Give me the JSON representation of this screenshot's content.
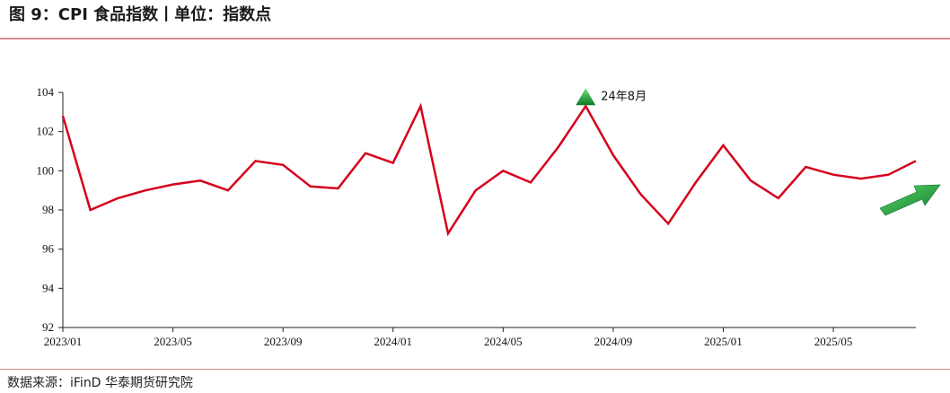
{
  "header": {
    "title": "图 9：CPI 食品指数丨单位：指数点"
  },
  "footer": {
    "source": "数据来源：iFinD  华泰期货研究院"
  },
  "colors": {
    "line": "#d6001c",
    "rule": "#d88a8e",
    "arrow": "#1e9e3a"
  },
  "icons": {
    "peak_marker": "green-up-triangle-icon",
    "trend_arrow": "green-up-right-arrow-icon"
  },
  "chart_data": {
    "type": "line",
    "x": [
      "2023/01",
      "2023/02",
      "2023/03",
      "2023/04",
      "2023/05",
      "2023/06",
      "2023/07",
      "2023/08",
      "2023/09",
      "2023/10",
      "2023/11",
      "2023/12",
      "2024/01",
      "2024/02",
      "2024/03",
      "2024/04",
      "2024/05",
      "2024/06",
      "2024/07",
      "2024/08",
      "2024/09",
      "2024/10",
      "2024/11",
      "2024/12",
      "2025/01",
      "2025/02",
      "2025/03",
      "2025/04",
      "2025/05",
      "2025/06",
      "2025/07",
      "2025/08"
    ],
    "series": [
      {
        "values": [
          102.8,
          98.0,
          98.6,
          99.0,
          99.3,
          99.5,
          99.0,
          100.5,
          100.3,
          99.2,
          99.1,
          100.9,
          100.4,
          103.3,
          96.8,
          99.0,
          100.0,
          99.4,
          101.2,
          103.3,
          100.8,
          98.8,
          97.3,
          99.4,
          101.3,
          99.5,
          98.6,
          100.2,
          99.8,
          99.6,
          99.8,
          100.5
        ]
      }
    ],
    "xticks": [
      "2023/01",
      "2023/05",
      "2023/09",
      "2024/01",
      "2024/05",
      "2024/09",
      "2025/01",
      "2025/05"
    ],
    "yticks": [
      "92",
      "94",
      "96",
      "98",
      "100",
      "102",
      "104"
    ],
    "ylim": [
      92,
      104
    ],
    "grid": false,
    "annotation": {
      "label": "24年8月",
      "x": "2024/08"
    }
  }
}
